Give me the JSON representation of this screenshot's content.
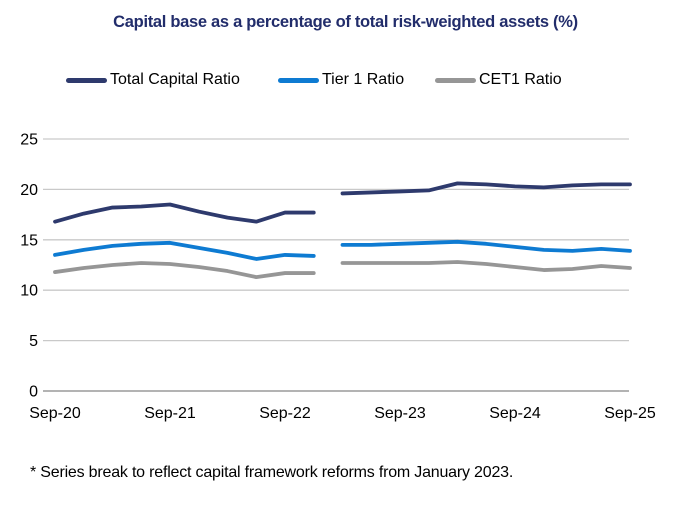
{
  "title": "Capital base as a percentage of total risk-weighted assets (%)",
  "footnote": "* Series break to reflect capital framework reforms from January 2023.",
  "colors": {
    "title_text": "#222D6B",
    "total_capital_ratio": "#2E3A6D",
    "tier1_ratio": "#0E7BD2",
    "cet1_ratio": "#969696",
    "gridline": "#C9C9C9",
    "axis_line": "#B3B3B3",
    "axis_text": "#000000"
  },
  "legend": [
    {
      "label": "Total Capital Ratio",
      "color_key": "total_capital_ratio"
    },
    {
      "label": "Tier 1 Ratio",
      "color_key": "tier1_ratio"
    },
    {
      "label": "CET1 Ratio",
      "color_key": "cet1_ratio"
    }
  ],
  "chart_data": {
    "type": "line",
    "title": "Capital base as a percentage of total risk-weighted assets (%)",
    "ylim": [
      0,
      25
    ],
    "y_ticks": [
      0,
      5,
      10,
      15,
      20,
      25
    ],
    "grid": "horizontal",
    "legend_position": "top",
    "x_quarters": [
      "Sep-20",
      "Dec-20",
      "Mar-21",
      "Jun-21",
      "Sep-21",
      "Dec-21",
      "Mar-22",
      "Jun-22",
      "Sep-22",
      "Dec-22",
      "Mar-23",
      "Jun-23",
      "Sep-23",
      "Dec-23",
      "Mar-24",
      "Jun-24",
      "Sep-24",
      "Dec-24",
      "Mar-25",
      "Jun-25",
      "Sep-25"
    ],
    "x_tick_labels": [
      "Sep-20",
      "Sep-21",
      "Sep-22",
      "Sep-23",
      "Sep-24",
      "Sep-25"
    ],
    "x_tick_quarter_indices": [
      0,
      4,
      8,
      12,
      16,
      20
    ],
    "series_break": {
      "between": [
        "Dec-22",
        "Mar-23"
      ],
      "reason": "capital framework reforms from January 2023"
    },
    "series": [
      {
        "name": "Total Capital Ratio",
        "color_key": "total_capital_ratio",
        "segments": [
          {
            "start_index": 0,
            "values": [
              16.8,
              17.6,
              18.2,
              18.3,
              18.5,
              17.8,
              17.2,
              16.8,
              17.7,
              17.7
            ]
          },
          {
            "start_index": 10,
            "values": [
              19.6,
              19.7,
              19.8,
              19.9,
              20.6,
              20.5,
              20.3,
              20.2,
              20.4,
              20.5,
              20.5
            ]
          }
        ]
      },
      {
        "name": "Tier 1 Ratio",
        "color_key": "tier1_ratio",
        "segments": [
          {
            "start_index": 0,
            "values": [
              13.5,
              14.0,
              14.4,
              14.6,
              14.7,
              14.2,
              13.7,
              13.1,
              13.5,
              13.4
            ]
          },
          {
            "start_index": 10,
            "values": [
              14.5,
              14.5,
              14.6,
              14.7,
              14.8,
              14.6,
              14.3,
              14.0,
              13.9,
              14.1,
              13.9
            ]
          }
        ]
      },
      {
        "name": "CET1 Ratio",
        "color_key": "cet1_ratio",
        "segments": [
          {
            "start_index": 0,
            "values": [
              11.8,
              12.2,
              12.5,
              12.7,
              12.6,
              12.3,
              11.9,
              11.3,
              11.7,
              11.7
            ]
          },
          {
            "start_index": 10,
            "values": [
              12.7,
              12.7,
              12.7,
              12.7,
              12.8,
              12.6,
              12.3,
              12.0,
              12.1,
              12.4,
              12.2
            ]
          }
        ]
      }
    ]
  }
}
